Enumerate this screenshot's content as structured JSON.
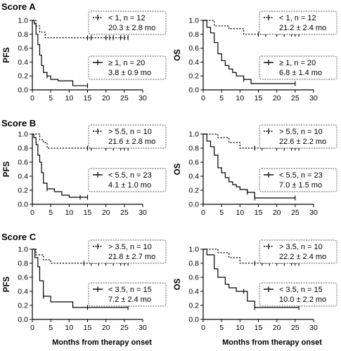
{
  "figure": {
    "xlabel": "Months from therapy onset",
    "xticks": [
      "0",
      "5",
      "10",
      "15",
      "20",
      "25",
      "30"
    ],
    "yticks": [
      "0.0",
      "0.2",
      "0.4",
      "0.6",
      "0.8",
      "1.0"
    ]
  },
  "score_titles": [
    "Score A",
    "Score B",
    "Score C"
  ],
  "chart_data": [
    {
      "type": "line",
      "panel": "Score A PFS",
      "ylabel": "PFS",
      "xlim": [
        0,
        30
      ],
      "ylim": [
        0,
        1.0
      ],
      "series": [
        {
          "name": "< 1, n = 12",
          "stat": "20.3 ± 2.8 mo",
          "style": "dotted",
          "x": [
            0,
            1,
            2,
            3.5,
            26
          ],
          "y": [
            1.0,
            0.92,
            0.83,
            0.75,
            0.75
          ],
          "censor_x": [
            15,
            16,
            20,
            21,
            22,
            24,
            25,
            26
          ]
        },
        {
          "name": "≥ 1, n = 20",
          "stat": "3.8 ± 0.9 mo",
          "style": "solid",
          "x": [
            0,
            0.5,
            1,
            1.5,
            2,
            2.5,
            3,
            4,
            5,
            7,
            11,
            15
          ],
          "y": [
            1.0,
            0.95,
            0.8,
            0.65,
            0.5,
            0.35,
            0.25,
            0.2,
            0.15,
            0.13,
            0.06,
            0.06
          ],
          "censor_x": [
            4,
            15
          ]
        }
      ]
    },
    {
      "type": "line",
      "panel": "Score A OS",
      "ylabel": "OS",
      "xlim": [
        0,
        30
      ],
      "ylim": [
        0,
        1.0
      ],
      "series": [
        {
          "name": "< 1, n = 12",
          "stat": "21.2 ± 2.4 mo",
          "style": "dotted",
          "x": [
            0,
            3,
            7,
            11,
            26
          ],
          "y": [
            1.0,
            0.92,
            0.88,
            0.8,
            0.8
          ],
          "censor_x": [
            15,
            17,
            20,
            22,
            24,
            25,
            26
          ]
        },
        {
          "name": "≥ 1, n = 20",
          "stat": "6.8 ± 1.4 mo",
          "style": "solid",
          "x": [
            0,
            1,
            2,
            3,
            4,
            5,
            6,
            7,
            8,
            9,
            11,
            13,
            25
          ],
          "y": [
            1.0,
            0.9,
            0.82,
            0.68,
            0.52,
            0.42,
            0.35,
            0.3,
            0.25,
            0.2,
            0.15,
            0.09,
            0.09
          ],
          "censor_x": [
            11,
            25
          ]
        }
      ]
    },
    {
      "type": "line",
      "panel": "Score B PFS",
      "ylabel": "PFS",
      "xlim": [
        0,
        30
      ],
      "ylim": [
        0,
        1.0
      ],
      "series": [
        {
          "name": "> 5.5, n = 10",
          "stat": "21.6 ± 2.8 mo",
          "style": "dotted",
          "x": [
            0,
            2,
            3,
            4,
            26
          ],
          "y": [
            1.0,
            0.92,
            0.88,
            0.8,
            0.8
          ],
          "censor_x": [
            15,
            16,
            20,
            22,
            24,
            25,
            26
          ]
        },
        {
          "name": "< 5.5, n = 23",
          "stat": "4.1 ± 1.0 mo",
          "style": "solid",
          "x": [
            0,
            0.4,
            1,
            1.5,
            2,
            2.5,
            3,
            4,
            6,
            8,
            10,
            15
          ],
          "y": [
            1.0,
            0.95,
            0.85,
            0.7,
            0.6,
            0.45,
            0.3,
            0.22,
            0.18,
            0.13,
            0.1,
            0.1
          ],
          "censor_x": [
            4,
            13,
            15
          ]
        }
      ]
    },
    {
      "type": "line",
      "panel": "Score B OS",
      "ylabel": "OS",
      "xlim": [
        0,
        30
      ],
      "ylim": [
        0,
        1.0
      ],
      "series": [
        {
          "name": "> 5.5, n = 10",
          "stat": "22.6 ± 2.2 mo",
          "style": "dotted",
          "x": [
            0,
            4,
            7,
            10,
            26
          ],
          "y": [
            1.0,
            0.95,
            0.88,
            0.8,
            0.8
          ],
          "censor_x": [
            14,
            16,
            20,
            22,
            24,
            25,
            26
          ]
        },
        {
          "name": "< 5.5, n = 23",
          "stat": "7.0 ± 1.5 mo",
          "style": "solid",
          "x": [
            0,
            1,
            2,
            3,
            4,
            5,
            6,
            7,
            8,
            9,
            10,
            12,
            14,
            25
          ],
          "y": [
            1.0,
            0.9,
            0.82,
            0.7,
            0.52,
            0.45,
            0.38,
            0.32,
            0.28,
            0.25,
            0.21,
            0.17,
            0.09,
            0.09
          ],
          "censor_x": [
            12,
            14,
            25
          ]
        }
      ]
    },
    {
      "type": "line",
      "panel": "Score C PFS",
      "ylabel": "PFS",
      "xlim": [
        0,
        30
      ],
      "ylim": [
        0,
        1.0
      ],
      "series": [
        {
          "name": "> 3.5, n = 10",
          "stat": "21.8 ± 2.7 mo",
          "style": "dotted",
          "x": [
            0,
            1,
            3,
            5,
            26
          ],
          "y": [
            1.0,
            0.92,
            0.85,
            0.8,
            0.8
          ],
          "censor_x": [
            14,
            16,
            18,
            20,
            22,
            24,
            25,
            26
          ]
        },
        {
          "name": "< 3.5, n = 15",
          "stat": "7.2 ± 2.4 mo",
          "style": "solid",
          "x": [
            0,
            0.7,
            1.5,
            2,
            3,
            5,
            11,
            26
          ],
          "y": [
            1.0,
            0.88,
            0.75,
            0.55,
            0.33,
            0.25,
            0.17,
            0.17
          ],
          "censor_x": [
            3,
            15,
            26
          ]
        }
      ]
    },
    {
      "type": "line",
      "panel": "Score C OS",
      "ylabel": "OS",
      "xlim": [
        0,
        30
      ],
      "ylim": [
        0,
        1.0
      ],
      "series": [
        {
          "name": "> 3.5, n = 10",
          "stat": "22.2 ± 2.4 mo",
          "style": "dotted",
          "x": [
            0,
            4,
            7,
            10,
            26
          ],
          "y": [
            1.0,
            0.95,
            0.88,
            0.8,
            0.8
          ],
          "censor_x": [
            14,
            16,
            18,
            20,
            22,
            24,
            25,
            26
          ]
        },
        {
          "name": "< 3.5, n = 15",
          "stat": "10.0 ± 2.2 mo",
          "style": "solid",
          "x": [
            0,
            1,
            3,
            4,
            6,
            7,
            9,
            12,
            14,
            26
          ],
          "y": [
            1.0,
            0.92,
            0.72,
            0.6,
            0.5,
            0.45,
            0.4,
            0.26,
            0.17,
            0.17
          ],
          "censor_x": [
            11,
            14,
            26
          ]
        }
      ]
    }
  ]
}
